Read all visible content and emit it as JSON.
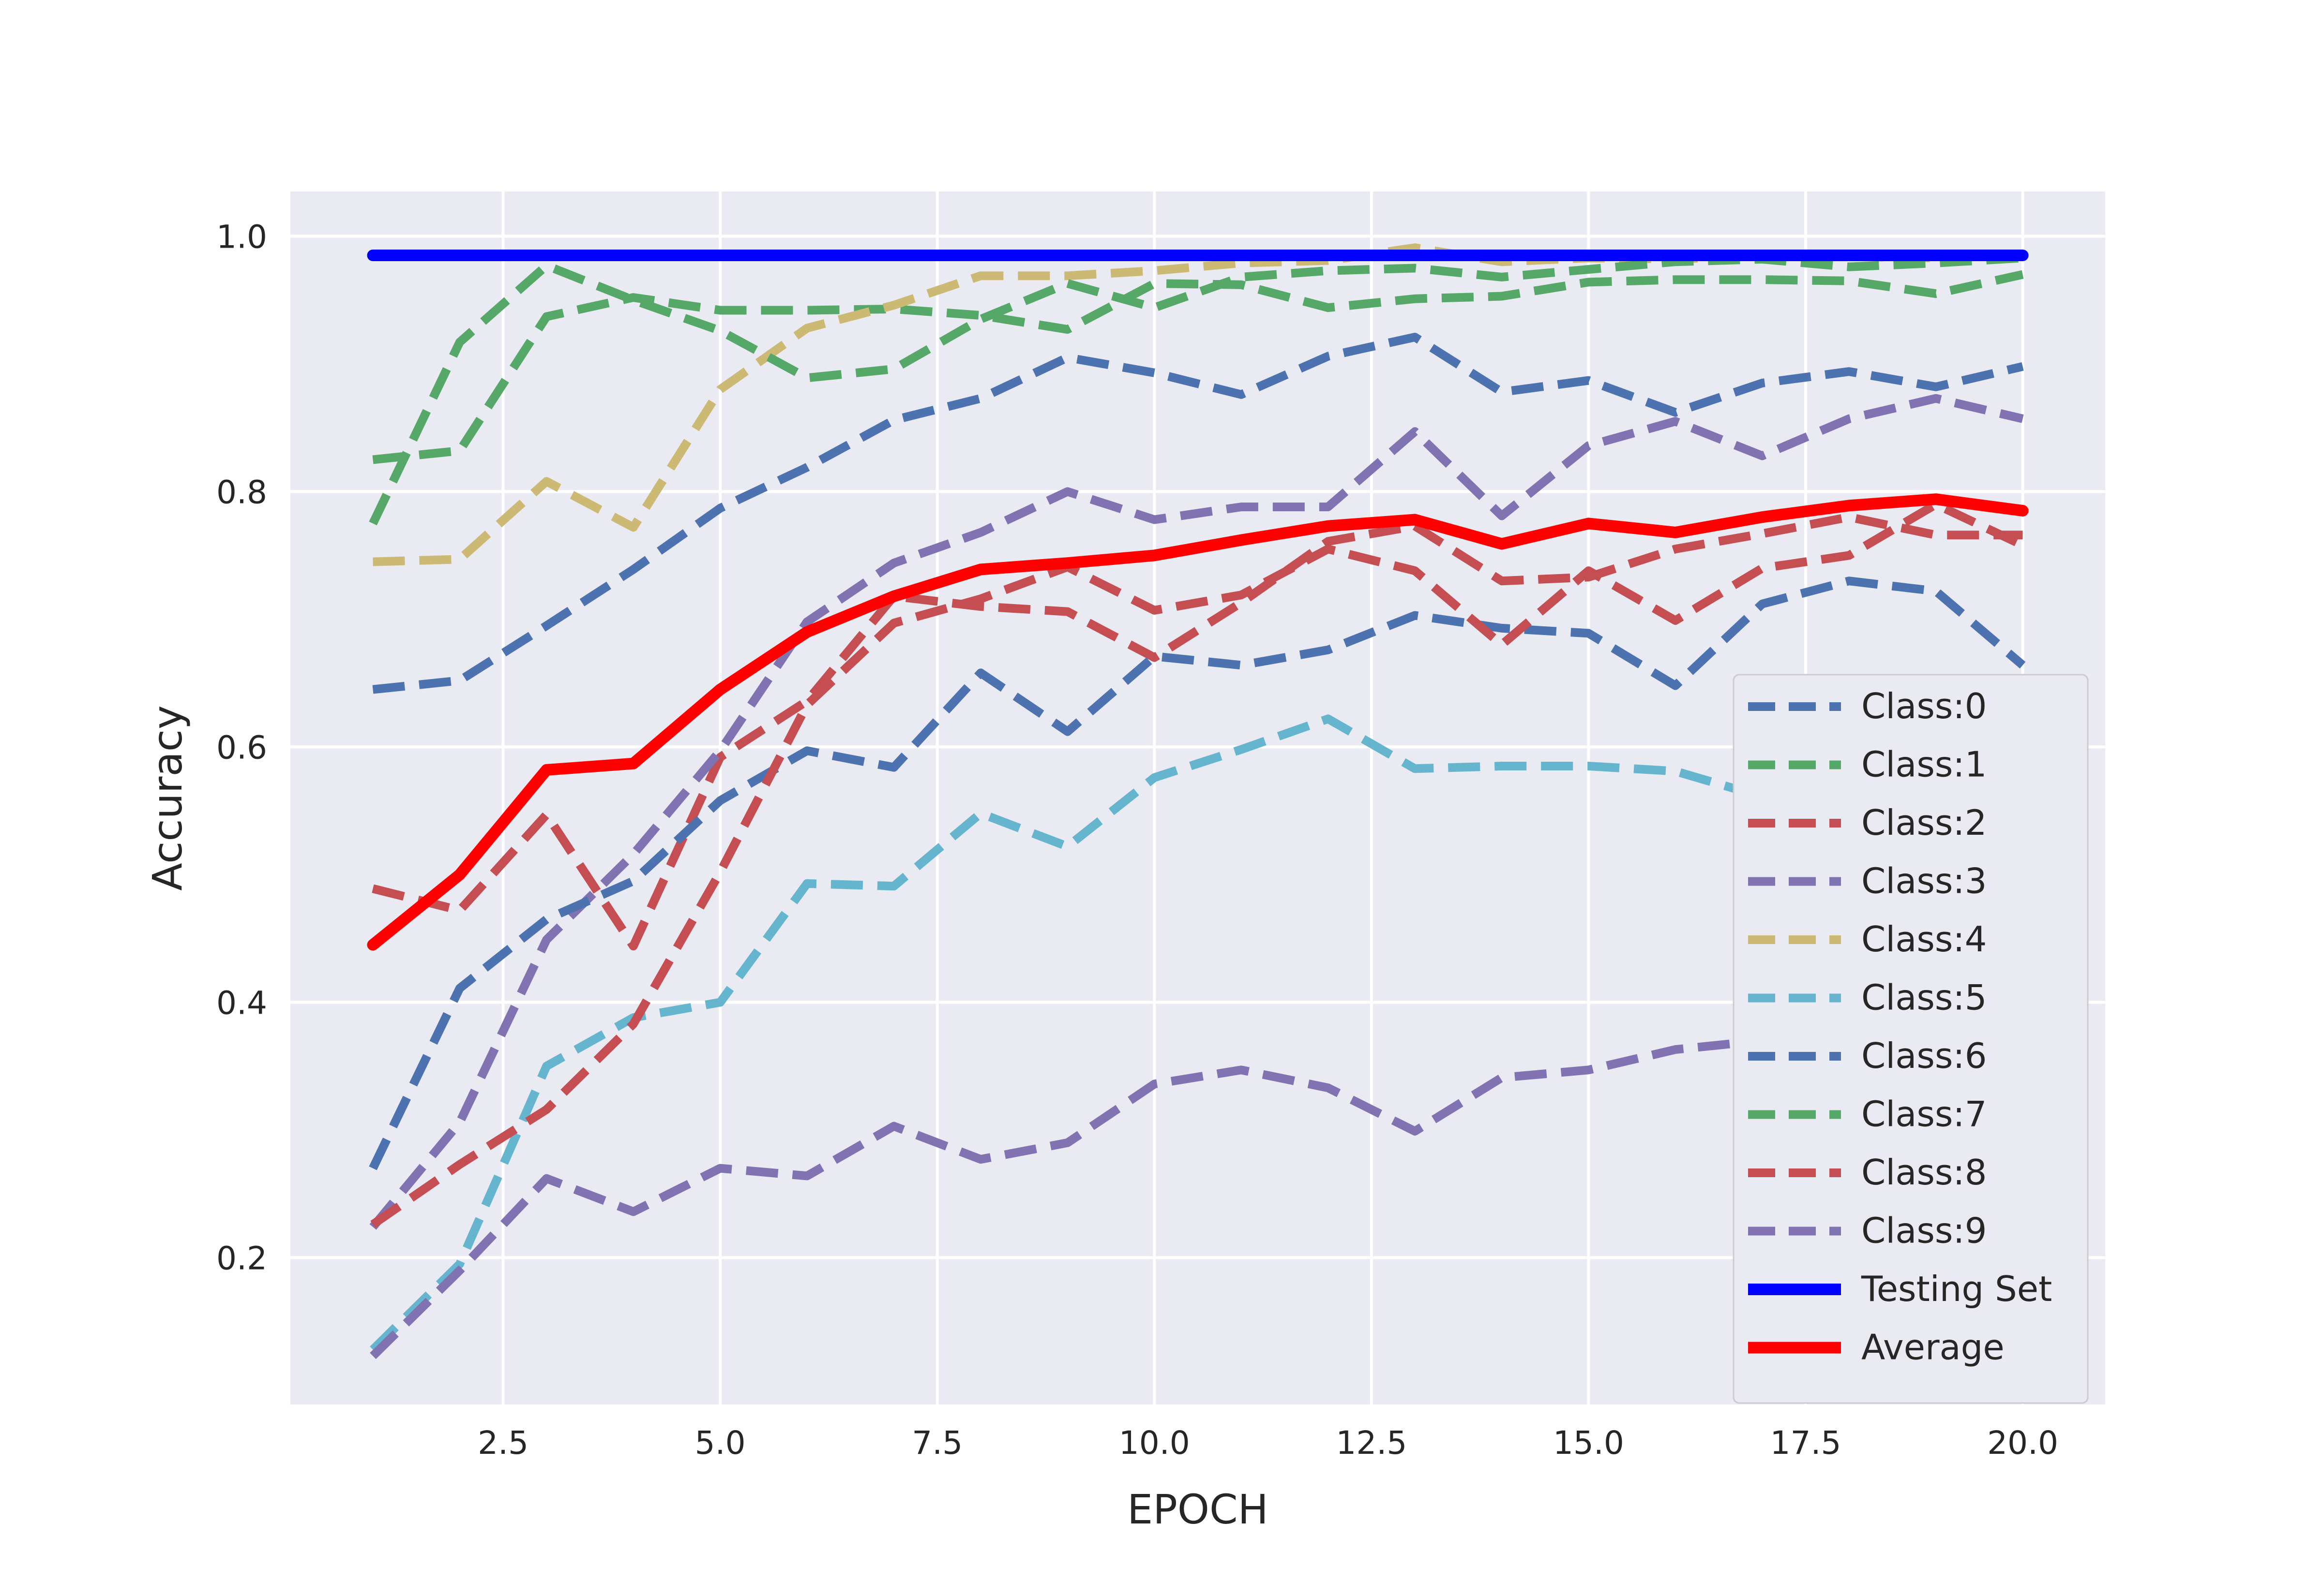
{
  "chart_data": {
    "type": "line",
    "title": "",
    "xlabel": "EPOCH",
    "ylabel": "Accuracy",
    "xlim": [
      0.05,
      20.95
    ],
    "ylim": [
      0.085,
      1.035
    ],
    "xticks": [
      2.5,
      5.0,
      7.5,
      10.0,
      12.5,
      15.0,
      17.5,
      20.0
    ],
    "xtick_labels": [
      "2.5",
      "5.0",
      "7.5",
      "10.0",
      "12.5",
      "15.0",
      "17.5",
      "20.0"
    ],
    "yticks": [
      0.2,
      0.4,
      0.6,
      0.8,
      1.0
    ],
    "ytick_labels": [
      "0.2",
      "0.4",
      "0.6",
      "0.8",
      "1.0"
    ],
    "grid": true,
    "legend_position": "lower-right",
    "x": [
      1,
      2,
      3,
      4,
      5,
      6,
      7,
      8,
      9,
      10,
      11,
      12,
      13,
      14,
      15,
      16,
      17,
      18,
      19,
      20
    ],
    "series": [
      {
        "name": "Class:0",
        "color": "#4c72b0",
        "style": "dashed",
        "values": [
          0.645,
          0.652,
          0.695,
          0.739,
          0.787,
          0.819,
          0.856,
          0.873,
          0.905,
          0.893,
          0.876,
          0.906,
          0.921,
          0.878,
          0.887,
          0.862,
          0.885,
          0.894,
          0.882,
          0.898
        ]
      },
      {
        "name": "Class:1",
        "color": "#55a868",
        "style": "dashed",
        "values": [
          0.825,
          0.832,
          0.937,
          0.952,
          0.942,
          0.942,
          0.943,
          0.938,
          0.927,
          0.963,
          0.962,
          0.944,
          0.951,
          0.953,
          0.964,
          0.966,
          0.966,
          0.965,
          0.955,
          0.97
        ]
      },
      {
        "name": "Class:2",
        "color": "#c44e52",
        "style": "dashed",
        "values": [
          0.489,
          0.472,
          0.547,
          0.444,
          0.592,
          0.636,
          0.718,
          0.71,
          0.706,
          0.67,
          0.713,
          0.761,
          0.773,
          0.73,
          0.733,
          0.755,
          0.767,
          0.78,
          0.766,
          0.766
        ]
      },
      {
        "name": "Class:3",
        "color": "#8172b2",
        "style": "dashed",
        "values": [
          0.224,
          0.306,
          0.449,
          0.516,
          0.597,
          0.698,
          0.744,
          0.768,
          0.8,
          0.778,
          0.788,
          0.788,
          0.847,
          0.781,
          0.836,
          0.855,
          0.828,
          0.857,
          0.873,
          0.857
        ]
      },
      {
        "name": "Class:4",
        "color": "#ccb974",
        "style": "dashed",
        "values": [
          0.745,
          0.747,
          0.808,
          0.772,
          0.88,
          0.928,
          0.946,
          0.969,
          0.969,
          0.973,
          0.979,
          0.981,
          0.991,
          0.98,
          0.983,
          0.982,
          0.985,
          0.984,
          0.983,
          0.985
        ]
      },
      {
        "name": "Class:5",
        "color": "#64b5cd",
        "style": "dashed",
        "values": [
          0.128,
          0.195,
          0.35,
          0.388,
          0.4,
          0.493,
          0.491,
          0.548,
          0.522,
          0.576,
          0.598,
          0.622,
          0.583,
          0.585,
          0.585,
          0.581,
          0.561,
          0.56,
          0.56,
          0.56
        ]
      },
      {
        "name": "Class:6",
        "color": "#4c72b0",
        "style": "dashed",
        "values": [
          0.27,
          0.411,
          0.465,
          0.495,
          0.558,
          0.597,
          0.584,
          0.658,
          0.612,
          0.671,
          0.664,
          0.676,
          0.703,
          0.693,
          0.689,
          0.648,
          0.712,
          0.73,
          0.722,
          0.664
        ]
      },
      {
        "name": "Class:7",
        "color": "#55a868",
        "style": "dashed",
        "values": [
          0.775,
          0.917,
          0.977,
          0.95,
          0.926,
          0.889,
          0.896,
          0.935,
          0.963,
          0.944,
          0.968,
          0.973,
          0.975,
          0.968,
          0.974,
          0.98,
          0.982,
          0.976,
          0.979,
          0.983
        ]
      },
      {
        "name": "Class:8",
        "color": "#c44e52",
        "style": "dashed",
        "values": [
          0.226,
          0.273,
          0.316,
          0.383,
          0.502,
          0.633,
          0.697,
          0.716,
          0.741,
          0.707,
          0.719,
          0.755,
          0.738,
          0.68,
          0.738,
          0.699,
          0.74,
          0.75,
          0.79,
          0.758
        ]
      },
      {
        "name": "Class:9",
        "color": "#8172b2",
        "style": "dashed",
        "values": [
          0.123,
          0.19,
          0.262,
          0.236,
          0.27,
          0.264,
          0.303,
          0.277,
          0.29,
          0.336,
          0.347,
          0.333,
          0.299,
          0.341,
          0.347,
          0.363,
          0.37,
          0.37,
          0.37,
          0.37
        ]
      },
      {
        "name": "Testing Set",
        "color": "#0000ff",
        "style": "solid",
        "values": [
          0.985,
          0.985,
          0.985,
          0.985,
          0.985,
          0.985,
          0.985,
          0.985,
          0.985,
          0.985,
          0.985,
          0.985,
          0.985,
          0.985,
          0.985,
          0.985,
          0.985,
          0.985,
          0.985,
          0.985
        ]
      },
      {
        "name": "Average",
        "color": "#ff0000",
        "style": "solid",
        "values": [
          0.445,
          0.5,
          0.582,
          0.587,
          0.645,
          0.69,
          0.718,
          0.739,
          0.744,
          0.75,
          0.762,
          0.773,
          0.778,
          0.759,
          0.775,
          0.768,
          0.78,
          0.789,
          0.794,
          0.785
        ]
      }
    ]
  }
}
